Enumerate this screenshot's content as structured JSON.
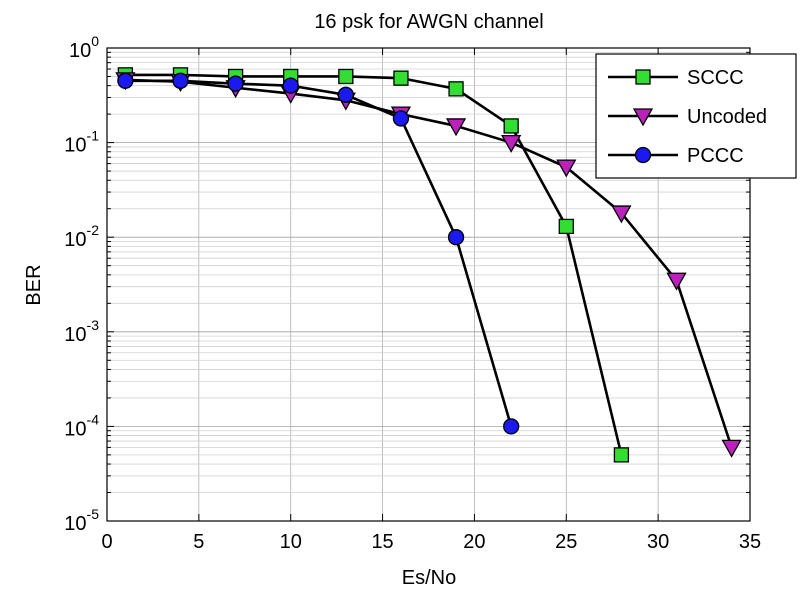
{
  "chart_data": {
    "type": "line",
    "title": "16 psk for AWGN channel",
    "xlabel": "Es/No",
    "ylabel": "BER",
    "xlim": [
      0,
      35
    ],
    "ylim": [
      1e-05,
      1
    ],
    "yscale": "log",
    "xticks": [
      0,
      5,
      10,
      15,
      20,
      25,
      30,
      35
    ],
    "yticks": [
      {
        "base": "10",
        "exp": "-5",
        "value": 1e-05
      },
      {
        "base": "10",
        "exp": "-4",
        "value": 0.0001
      },
      {
        "base": "10",
        "exp": "-3",
        "value": 0.001
      },
      {
        "base": "10",
        "exp": "-2",
        "value": 0.01
      },
      {
        "base": "10",
        "exp": "-1",
        "value": 0.1
      },
      {
        "base": "10",
        "exp": "0",
        "value": 1
      }
    ],
    "grid": true,
    "legend_position": "top-right",
    "series": [
      {
        "name": "SCCC",
        "marker": "square",
        "color": "#33dd33",
        "x": [
          1,
          4,
          7,
          10,
          13,
          16,
          19,
          22,
          25,
          28
        ],
        "y": [
          0.52,
          0.52,
          0.5,
          0.5,
          0.5,
          0.48,
          0.37,
          0.15,
          0.013,
          5e-05
        ]
      },
      {
        "name": "Uncoded",
        "marker": "triangle-down",
        "color": "#bb22bb",
        "x": [
          1,
          4,
          7,
          10,
          13,
          16,
          19,
          22,
          25,
          28,
          31,
          34
        ],
        "y": [
          0.46,
          0.44,
          0.38,
          0.33,
          0.28,
          0.2,
          0.15,
          0.1,
          0.055,
          0.018,
          0.0035,
          6e-05
        ]
      },
      {
        "name": "PCCC",
        "marker": "circle",
        "color": "#1a1aee",
        "x": [
          1,
          4,
          7,
          10,
          13,
          16,
          19,
          22
        ],
        "y": [
          0.45,
          0.45,
          0.42,
          0.4,
          0.32,
          0.18,
          0.01,
          0.0001
        ]
      }
    ]
  }
}
